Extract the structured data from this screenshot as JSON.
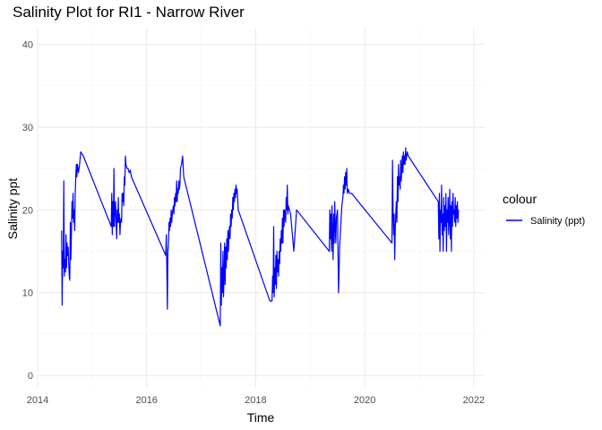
{
  "chart_data": {
    "type": "line",
    "title": "Salinity Plot for RI1 - Narrow River",
    "xlabel": "Time",
    "ylabel": "Salinity ppt",
    "x_ticks": [
      "2014",
      "2016",
      "2018",
      "2020",
      "2022"
    ],
    "y_ticks": [
      0,
      10,
      20,
      30,
      40
    ],
    "xlim": [
      2014.0,
      2022.2
    ],
    "ylim": [
      -1.5,
      42
    ],
    "grid": true,
    "legend": {
      "title": "colour",
      "placement": "right"
    },
    "series": [
      {
        "name": "Salinity (ppt)",
        "color": "#0000ff",
        "points": [
          [
            2014.44,
            17.5
          ],
          [
            2014.45,
            8.5
          ],
          [
            2014.46,
            15.0
          ],
          [
            2014.47,
            13.0
          ],
          [
            2014.48,
            23.5
          ],
          [
            2014.49,
            12.0
          ],
          [
            2014.5,
            14.0
          ],
          [
            2014.51,
            12.5
          ],
          [
            2014.52,
            17.0
          ],
          [
            2014.53,
            13.0
          ],
          [
            2014.54,
            16.0
          ],
          [
            2014.55,
            14.5
          ],
          [
            2014.56,
            15.5
          ],
          [
            2014.57,
            13.5
          ],
          [
            2014.58,
            12.0
          ],
          [
            2014.59,
            11.5
          ],
          [
            2014.6,
            18.5
          ],
          [
            2014.61,
            14.0
          ],
          [
            2014.62,
            17.0
          ],
          [
            2014.63,
            21.0
          ],
          [
            2014.64,
            19.0
          ],
          [
            2014.65,
            22.0
          ],
          [
            2014.66,
            18.5
          ],
          [
            2014.67,
            20.0
          ],
          [
            2014.68,
            17.5
          ],
          [
            2014.69,
            22.0
          ],
          [
            2014.7,
            24.0
          ],
          [
            2014.71,
            25.5
          ],
          [
            2014.72,
            24.0
          ],
          [
            2014.73,
            25.5
          ],
          [
            2014.75,
            24.5
          ],
          [
            2014.77,
            25.5
          ],
          [
            2014.79,
            27.0
          ],
          [
            2014.84,
            26.5
          ],
          [
            2015.35,
            18.0
          ],
          [
            2015.36,
            22.0
          ],
          [
            2015.37,
            17.0
          ],
          [
            2015.38,
            21.0
          ],
          [
            2015.39,
            18.0
          ],
          [
            2015.4,
            25.0
          ],
          [
            2015.41,
            18.0
          ],
          [
            2015.42,
            20.5
          ],
          [
            2015.43,
            21.0
          ],
          [
            2015.44,
            18.5
          ],
          [
            2015.45,
            16.5
          ],
          [
            2015.46,
            20.0
          ],
          [
            2015.47,
            18.5
          ],
          [
            2015.48,
            21.5
          ],
          [
            2015.49,
            18.5
          ],
          [
            2015.5,
            19.5
          ],
          [
            2015.51,
            17.0
          ],
          [
            2015.52,
            18.5
          ],
          [
            2015.53,
            19.0
          ],
          [
            2015.54,
            18.5
          ],
          [
            2015.55,
            22.0
          ],
          [
            2015.56,
            21.0
          ],
          [
            2015.57,
            22.0
          ],
          [
            2015.58,
            20.5
          ],
          [
            2015.59,
            24.0
          ],
          [
            2015.6,
            23.0
          ],
          [
            2015.61,
            26.5
          ],
          [
            2015.62,
            25.5
          ],
          [
            2015.64,
            25.0
          ],
          [
            2015.66,
            25.0
          ],
          [
            2015.68,
            24.5
          ],
          [
            2015.7,
            24.8
          ],
          [
            2015.72,
            24.0
          ],
          [
            2016.35,
            14.5
          ],
          [
            2016.36,
            17.0
          ],
          [
            2016.37,
            13.0
          ],
          [
            2016.38,
            8.0
          ],
          [
            2016.39,
            15.0
          ],
          [
            2016.4,
            16.0
          ],
          [
            2016.41,
            18.5
          ],
          [
            2016.42,
            17.5
          ],
          [
            2016.43,
            19.0
          ],
          [
            2016.44,
            18.0
          ],
          [
            2016.45,
            20.0
          ],
          [
            2016.46,
            18.5
          ],
          [
            2016.47,
            19.5
          ],
          [
            2016.48,
            20.0
          ],
          [
            2016.49,
            20.5
          ],
          [
            2016.5,
            19.5
          ],
          [
            2016.51,
            21.5
          ],
          [
            2016.52,
            20.5
          ],
          [
            2016.53,
            22.0
          ],
          [
            2016.54,
            21.0
          ],
          [
            2016.55,
            23.5
          ],
          [
            2016.56,
            21.0
          ],
          [
            2016.57,
            22.5
          ],
          [
            2016.58,
            22.0
          ],
          [
            2016.59,
            23.5
          ],
          [
            2016.6,
            22.5
          ],
          [
            2016.61,
            23.0
          ],
          [
            2016.62,
            25.0
          ],
          [
            2016.64,
            25.5
          ],
          [
            2016.66,
            26.5
          ],
          [
            2016.68,
            24.0
          ],
          [
            2017.35,
            6.0
          ],
          [
            2017.36,
            16.0
          ],
          [
            2017.37,
            8.5
          ],
          [
            2017.38,
            13.0
          ],
          [
            2017.39,
            10.0
          ],
          [
            2017.4,
            15.0
          ],
          [
            2017.41,
            9.5
          ],
          [
            2017.42,
            12.0
          ],
          [
            2017.43,
            16.0
          ],
          [
            2017.44,
            11.0
          ],
          [
            2017.45,
            15.5
          ],
          [
            2017.46,
            13.0
          ],
          [
            2017.47,
            16.5
          ],
          [
            2017.48,
            14.0
          ],
          [
            2017.49,
            17.5
          ],
          [
            2017.5,
            15.0
          ],
          [
            2017.51,
            17.0
          ],
          [
            2017.52,
            18.0
          ],
          [
            2017.53,
            16.5
          ],
          [
            2017.54,
            19.5
          ],
          [
            2017.55,
            18.0
          ],
          [
            2017.56,
            20.0
          ],
          [
            2017.57,
            19.0
          ],
          [
            2017.58,
            21.5
          ],
          [
            2017.59,
            20.0
          ],
          [
            2017.6,
            22.0
          ],
          [
            2017.61,
            21.0
          ],
          [
            2017.62,
            22.5
          ],
          [
            2017.63,
            21.5
          ],
          [
            2017.64,
            23.0
          ],
          [
            2017.65,
            22.0
          ],
          [
            2017.66,
            22.5
          ],
          [
            2017.68,
            20.0
          ],
          [
            2018.26,
            9.0
          ],
          [
            2018.3,
            9.0
          ],
          [
            2018.31,
            12.0
          ],
          [
            2018.32,
            10.0
          ],
          [
            2018.33,
            18.0
          ],
          [
            2018.34,
            9.5
          ],
          [
            2018.35,
            13.0
          ],
          [
            2018.36,
            11.0
          ],
          [
            2018.37,
            14.5
          ],
          [
            2018.38,
            10.5
          ],
          [
            2018.39,
            15.0
          ],
          [
            2018.4,
            12.5
          ],
          [
            2018.41,
            14.0
          ],
          [
            2018.42,
            12.0
          ],
          [
            2018.43,
            15.0
          ],
          [
            2018.44,
            13.5
          ],
          [
            2018.45,
            16.5
          ],
          [
            2018.46,
            15.0
          ],
          [
            2018.47,
            17.5
          ],
          [
            2018.48,
            16.0
          ],
          [
            2018.49,
            19.0
          ],
          [
            2018.5,
            16.0
          ],
          [
            2018.51,
            20.0
          ],
          [
            2018.52,
            18.0
          ],
          [
            2018.53,
            20.0
          ],
          [
            2018.54,
            19.5
          ],
          [
            2018.55,
            18.5
          ],
          [
            2018.56,
            21.5
          ],
          [
            2018.57,
            20.0
          ],
          [
            2018.58,
            23.0
          ],
          [
            2018.59,
            19.5
          ],
          [
            2018.6,
            20.5
          ],
          [
            2018.62,
            20.0
          ],
          [
            2018.64,
            19.5
          ],
          [
            2018.66,
            18.0
          ],
          [
            2018.68,
            16.5
          ],
          [
            2018.7,
            15.0
          ],
          [
            2018.75,
            20.0
          ],
          [
            2019.35,
            15.0
          ],
          [
            2019.36,
            20.0
          ],
          [
            2019.37,
            16.5
          ],
          [
            2019.38,
            19.5
          ],
          [
            2019.39,
            15.0
          ],
          [
            2019.4,
            20.5
          ],
          [
            2019.41,
            17.0
          ],
          [
            2019.42,
            14.0
          ],
          [
            2019.43,
            19.5
          ],
          [
            2019.44,
            16.0
          ],
          [
            2019.45,
            21.0
          ],
          [
            2019.46,
            18.0
          ],
          [
            2019.47,
            16.0
          ],
          [
            2019.48,
            19.0
          ],
          [
            2019.5,
            20.0
          ],
          [
            2019.52,
            10.0
          ],
          [
            2019.54,
            15.5
          ],
          [
            2019.56,
            18.0
          ],
          [
            2019.58,
            20.5
          ],
          [
            2019.6,
            21.5
          ],
          [
            2019.61,
            23.0
          ],
          [
            2019.62,
            22.0
          ],
          [
            2019.63,
            24.0
          ],
          [
            2019.64,
            22.5
          ],
          [
            2019.65,
            24.5
          ],
          [
            2019.66,
            23.0
          ],
          [
            2019.67,
            25.0
          ],
          [
            2019.68,
            22.0
          ],
          [
            2019.7,
            22.5
          ],
          [
            2019.72,
            22.0
          ],
          [
            2019.76,
            22.0
          ],
          [
            2020.5,
            16.0
          ],
          [
            2020.51,
            26.0
          ],
          [
            2020.52,
            20.0
          ],
          [
            2020.53,
            17.0
          ],
          [
            2020.54,
            19.5
          ],
          [
            2020.55,
            14.0
          ],
          [
            2020.56,
            17.5
          ],
          [
            2020.57,
            19.5
          ],
          [
            2020.58,
            21.0
          ],
          [
            2020.59,
            18.5
          ],
          [
            2020.6,
            24.0
          ],
          [
            2020.61,
            21.0
          ],
          [
            2020.62,
            25.5
          ],
          [
            2020.63,
            23.0
          ],
          [
            2020.64,
            24.0
          ],
          [
            2020.65,
            22.5
          ],
          [
            2020.66,
            26.0
          ],
          [
            2020.67,
            23.5
          ],
          [
            2020.68,
            25.0
          ],
          [
            2020.69,
            26.5
          ],
          [
            2020.7,
            24.5
          ],
          [
            2020.71,
            27.0
          ],
          [
            2020.72,
            25.5
          ],
          [
            2020.73,
            26.5
          ],
          [
            2020.74,
            25.5
          ],
          [
            2020.75,
            27.5
          ],
          [
            2020.76,
            26.0
          ],
          [
            2020.78,
            27.0
          ],
          [
            2020.8,
            26.5
          ],
          [
            2021.35,
            21.0
          ],
          [
            2021.36,
            16.5
          ],
          [
            2021.37,
            22.0
          ],
          [
            2021.38,
            15.0
          ],
          [
            2021.39,
            20.0
          ],
          [
            2021.4,
            18.5
          ],
          [
            2021.41,
            23.0
          ],
          [
            2021.42,
            17.0
          ],
          [
            2021.43,
            19.5
          ],
          [
            2021.44,
            15.0
          ],
          [
            2021.45,
            21.5
          ],
          [
            2021.46,
            17.5
          ],
          [
            2021.47,
            20.5
          ],
          [
            2021.48,
            18.0
          ],
          [
            2021.49,
            22.0
          ],
          [
            2021.5,
            15.0
          ],
          [
            2021.51,
            20.0
          ],
          [
            2021.52,
            18.5
          ],
          [
            2021.53,
            21.5
          ],
          [
            2021.54,
            17.0
          ],
          [
            2021.55,
            19.0
          ],
          [
            2021.56,
            22.5
          ],
          [
            2021.57,
            16.5
          ],
          [
            2021.58,
            20.5
          ],
          [
            2021.59,
            15.0
          ],
          [
            2021.6,
            21.0
          ],
          [
            2021.61,
            18.0
          ],
          [
            2021.62,
            22.0
          ],
          [
            2021.63,
            19.5
          ],
          [
            2021.64,
            20.0
          ],
          [
            2021.65,
            18.5
          ],
          [
            2021.66,
            21.5
          ],
          [
            2021.67,
            18.0
          ],
          [
            2021.68,
            20.5
          ],
          [
            2021.69,
            19.0
          ],
          [
            2021.7,
            21.0
          ],
          [
            2021.71,
            18.5
          ],
          [
            2021.72,
            20.0
          ]
        ]
      }
    ]
  }
}
